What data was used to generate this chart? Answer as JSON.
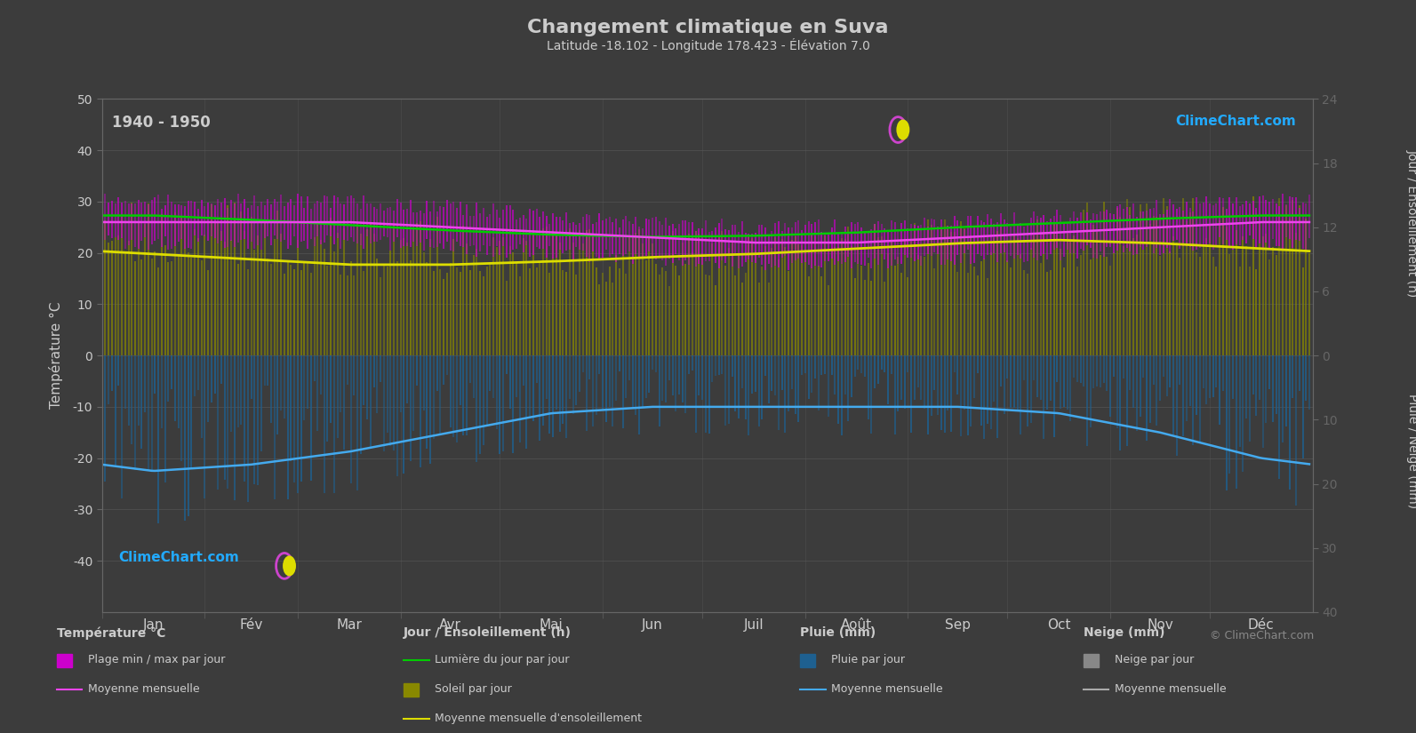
{
  "title": "Changement climatique en Suva",
  "subtitle": "Latitude -18.102 - Longitude 178.423 - Élévation 7.0",
  "period": "1940 - 1950",
  "background_color": "#3c3c3c",
  "plot_bg_color": "#3c3c3c",
  "text_color": "#cccccc",
  "months": [
    "Jan",
    "Fév",
    "Mar",
    "Avr",
    "Mai",
    "Jun",
    "Juil",
    "Août",
    "Sep",
    "Oct",
    "Nov",
    "Déc"
  ],
  "temp_ylim": [
    -50,
    50
  ],
  "temp_min_daily": [
    22,
    22,
    22,
    21,
    20,
    19,
    18,
    18,
    19,
    20,
    21,
    22
  ],
  "temp_max_daily": [
    30,
    30,
    30,
    29,
    27,
    26,
    25,
    25,
    26,
    27,
    29,
    30
  ],
  "temp_mean_monthly": [
    26,
    26,
    26,
    25,
    24,
    23,
    22,
    22,
    23,
    24,
    25,
    26
  ],
  "sunshine_hours_daily": [
    11.5,
    11.0,
    10.5,
    10.0,
    9.5,
    9.0,
    9.0,
    9.5,
    10.0,
    11.0,
    11.5,
    11.5
  ],
  "daylight_hours_daily": [
    13.1,
    12.7,
    12.2,
    11.7,
    11.3,
    11.1,
    11.2,
    11.5,
    12.0,
    12.4,
    12.8,
    13.1
  ],
  "sunshine_mean_monthly": [
    9.5,
    9.0,
    8.5,
    8.5,
    8.8,
    9.2,
    9.5,
    10.0,
    10.5,
    10.8,
    10.5,
    10.0
  ],
  "rain_daily_mean_mm": [
    15,
    14,
    12,
    10,
    8,
    7,
    7,
    7,
    7,
    8,
    10,
    13
  ],
  "rain_monthly_mean_mm": [
    18,
    17,
    15,
    12,
    9,
    8,
    8,
    8,
    8,
    9,
    12,
    16
  ],
  "colors": {
    "temp_range_fill": "#cc00cc",
    "temp_mean_line": "#ee44ee",
    "sunshine_fill": "#888800",
    "daylight_line": "#00cc00",
    "sunshine_mean_line": "#dddd00",
    "rain_fill": "#1e6090",
    "rain_mean_line": "#44aaee",
    "snow_fill": "#888888",
    "snow_mean_line": "#aaaaaa",
    "grid": "#555555",
    "axis_spine": "#666666",
    "watermark_text": "#22aaff",
    "watermark_text2": "#888888"
  },
  "legend": {
    "temp_label1": "Plage min / max par jour",
    "temp_label2": "Moyenne mensuelle",
    "sun_label1": "Lumière du jour par jour",
    "sun_label2": "Soleil par jour",
    "sun_label3": "Moyenne mensuelle d'ensoleillement",
    "rain_label1": "Pluie par jour",
    "rain_label2": "Moyenne mensuelle",
    "snow_label1": "Neige par jour",
    "snow_label2": "Moyenne mensuelle"
  }
}
